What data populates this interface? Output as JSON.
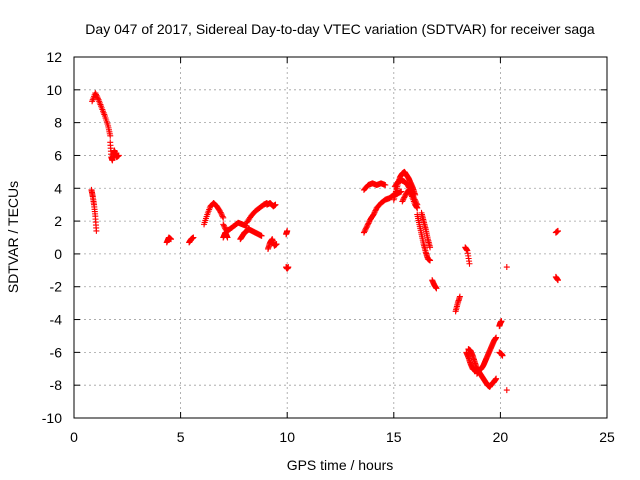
{
  "chart_data": {
    "type": "scatter",
    "title": "Day 047 of 2017, Sidereal Day-to-day VTEC variation (SDTVAR) for receiver saga",
    "xlabel": "GPS time / hours",
    "ylabel": "SDTVAR / TECUs",
    "xlim": [
      0,
      25
    ],
    "ylim": [
      -10,
      12
    ],
    "xticks": [
      0,
      5,
      10,
      15,
      20,
      25
    ],
    "xtick_labels": [
      "0",
      "5",
      "10",
      "15",
      "20",
      "25"
    ],
    "yticks": [
      -10,
      -8,
      -6,
      -4,
      -2,
      0,
      2,
      4,
      6,
      8,
      10,
      12
    ],
    "ytick_labels": [
      "-10",
      "-8",
      "-6",
      "-4",
      "-2",
      "0",
      "2",
      "4",
      "6",
      "8",
      "10",
      "12"
    ],
    "grid": true,
    "marker": "+",
    "color": "#ff0000",
    "series": [
      {
        "name": "SDTVAR",
        "segments": [
          {
            "x": [
              0.85,
              1.0,
              1.15,
              1.3,
              1.45,
              1.6,
              1.7
            ],
            "y": [
              9.3,
              9.8,
              9.4,
              8.9,
              8.4,
              7.8,
              7.2
            ]
          },
          {
            "x": [
              1.7,
              1.75,
              1.8,
              1.85,
              1.9,
              2.0,
              2.1
            ],
            "y": [
              6.8,
              5.9,
              5.7,
              6.1,
              6.3,
              5.9,
              6.0
            ]
          },
          {
            "x": [
              0.82,
              0.88,
              0.94,
              1.0,
              1.05
            ],
            "y": [
              3.9,
              3.5,
              3.0,
              2.3,
              1.4
            ]
          },
          {
            "x": [
              4.35,
              4.45,
              4.55
            ],
            "y": [
              0.7,
              1.0,
              0.9
            ]
          },
          {
            "x": [
              5.4,
              5.5,
              5.6
            ],
            "y": [
              0.7,
              0.9,
              1.0
            ]
          },
          {
            "x": [
              6.1,
              6.25,
              6.4,
              6.55,
              6.7,
              6.85,
              7.0
            ],
            "y": [
              1.8,
              2.4,
              2.9,
              3.1,
              2.9,
              2.6,
              2.2
            ]
          },
          {
            "x": [
              7.0,
              7.15,
              7.3,
              7.5,
              7.7,
              7.9,
              8.1
            ],
            "y": [
              1.8,
              1.4,
              1.5,
              1.7,
              1.9,
              1.8,
              1.7
            ]
          },
          {
            "x": [
              8.1,
              8.3,
              8.5,
              8.7,
              8.9,
              9.05
            ],
            "y": [
              1.9,
              2.3,
              2.6,
              2.8,
              3.0,
              3.1
            ]
          },
          {
            "x": [
              9.05,
              9.2,
              9.35,
              9.45
            ],
            "y": [
              3.0,
              3.1,
              2.9,
              3.0
            ]
          },
          {
            "x": [
              7.0,
              7.1,
              7.2
            ],
            "y": [
              1.0,
              1.3,
              1.0
            ]
          },
          {
            "x": [
              7.8,
              7.9,
              8.0,
              8.1,
              8.2,
              8.35,
              8.5,
              8.65,
              8.8
            ],
            "y": [
              0.9,
              1.1,
              1.3,
              1.4,
              1.5,
              1.4,
              1.3,
              1.2,
              1.1
            ]
          },
          {
            "x": [
              9.1,
              9.2,
              9.3,
              9.4,
              9.5
            ],
            "y": [
              0.3,
              0.7,
              0.9,
              0.5,
              0.6
            ]
          },
          {
            "x": [
              9.95,
              10.0
            ],
            "y": [
              1.2,
              1.4
            ]
          },
          {
            "x": [
              9.95,
              10.0,
              10.05
            ],
            "y": [
              -0.8,
              -0.9,
              -0.8
            ]
          },
          {
            "x": [
              13.6,
              13.8,
              14.0,
              14.2,
              14.4,
              14.6
            ],
            "y": [
              3.9,
              4.2,
              4.3,
              4.2,
              4.3,
              4.2
            ]
          },
          {
            "x": [
              13.6,
              13.75,
              13.9,
              14.05,
              14.2,
              14.4,
              14.6,
              14.8,
              15.0,
              15.2,
              15.35
            ],
            "y": [
              1.3,
              1.7,
              2.1,
              2.4,
              2.8,
              3.1,
              3.3,
              3.4,
              3.6,
              3.7,
              3.8
            ]
          },
          {
            "x": [
              15.0,
              15.1,
              15.2,
              15.3,
              15.4,
              15.5,
              15.6,
              15.7,
              15.8,
              15.9,
              16.0
            ],
            "y": [
              3.3,
              3.8,
              4.3,
              4.7,
              4.9,
              5.0,
              4.8,
              4.6,
              4.3,
              4.0,
              3.6
            ]
          },
          {
            "x": [
              15.05,
              15.2,
              15.35,
              15.5,
              15.65,
              15.8,
              15.95,
              16.1
            ],
            "y": [
              4.1,
              4.4,
              4.5,
              4.4,
              4.2,
              3.8,
              3.4,
              3.0
            ]
          },
          {
            "x": [
              15.4,
              15.55,
              15.7,
              15.85,
              16.0,
              16.1
            ],
            "y": [
              3.2,
              3.6,
              3.9,
              3.5,
              3.0,
              2.8
            ]
          },
          {
            "x": [
              16.1,
              16.2,
              16.3,
              16.4,
              16.5,
              16.6,
              16.7
            ],
            "y": [
              2.4,
              1.8,
              1.2,
              0.6,
              0.1,
              -0.3,
              -0.4
            ]
          },
          {
            "x": [
              16.3,
              16.4,
              16.5,
              16.6,
              16.7
            ],
            "y": [
              2.5,
              2.0,
              1.5,
              0.9,
              0.4
            ]
          },
          {
            "x": [
              16.8,
              16.9,
              17.0
            ],
            "y": [
              -1.6,
              -1.9,
              -2.1
            ]
          },
          {
            "x": [
              17.9,
              18.0,
              18.1
            ],
            "y": [
              -3.5,
              -3.0,
              -2.6
            ]
          },
          {
            "x": [
              18.35,
              18.45,
              18.55
            ],
            "y": [
              0.4,
              0.2,
              -0.6
            ]
          },
          {
            "x": [
              18.4,
              18.5,
              18.6,
              18.7,
              18.8,
              18.9,
              19.0,
              19.1,
              19.2,
              19.3,
              19.4,
              19.5,
              19.6,
              19.7,
              19.8
            ],
            "y": [
              -6.0,
              -6.3,
              -6.7,
              -7.0,
              -7.1,
              -7.0,
              -7.2,
              -7.4,
              -7.6,
              -7.8,
              -8.0,
              -8.1,
              -7.9,
              -7.8,
              -7.6
            ]
          },
          {
            "x": [
              18.5,
              18.6,
              18.7,
              18.8,
              18.9
            ],
            "y": [
              -5.8,
              -5.9,
              -6.2,
              -6.6,
              -7.0
            ]
          },
          {
            "x": [
              18.9,
              19.0,
              19.1,
              19.2,
              19.3,
              19.4,
              19.5,
              19.6,
              19.7,
              19.8
            ],
            "y": [
              -7.3,
              -7.1,
              -7.0,
              -6.8,
              -6.5,
              -6.2,
              -5.9,
              -5.6,
              -5.3,
              -5.1
            ]
          },
          {
            "x": [
              19.95,
              20.0,
              20.05
            ],
            "y": [
              -4.4,
              -4.2,
              -4.1
            ]
          },
          {
            "x": [
              19.95,
              20.05,
              20.1
            ],
            "y": [
              -6.0,
              -6.1,
              -6.2
            ]
          },
          {
            "x": [
              20.3
            ],
            "y": [
              -0.8
            ]
          },
          {
            "x": [
              20.3
            ],
            "y": [
              -8.3
            ]
          },
          {
            "x": [
              22.6,
              22.7
            ],
            "y": [
              1.3,
              1.4
            ]
          },
          {
            "x": [
              22.6,
              22.7
            ],
            "y": [
              -1.4,
              -1.6
            ]
          }
        ]
      }
    ]
  }
}
